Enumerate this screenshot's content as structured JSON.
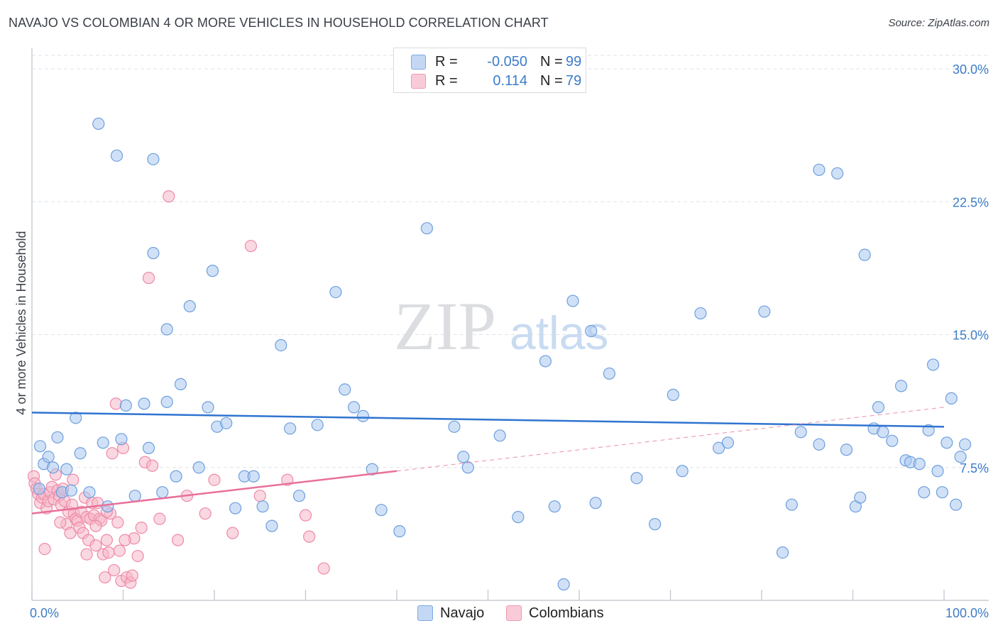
{
  "header": {
    "title": "NAVAJO VS COLOMBIAN 4 OR MORE VEHICLES IN HOUSEHOLD CORRELATION CHART",
    "source": "Source: ZipAtlas.com"
  },
  "watermark": {
    "zip": "ZIP",
    "atlas": "atlas"
  },
  "legend": {
    "navajo": {
      "r_label": "R =",
      "r_value": "-0.050",
      "n_label": "N =",
      "n_value": "99",
      "color": "#a9c8f0"
    },
    "colombians": {
      "r_label": "R =",
      "r_value": "0.114",
      "n_label": "N =",
      "n_value": "79",
      "color": "#f6b8c9"
    }
  },
  "bottom_legend": {
    "navajo": "Navajo",
    "colombians": "Colombians"
  },
  "colors": {
    "navajo_fill": "#a9c8f0",
    "navajo_stroke": "#6e9fdd",
    "navajo_line": "#2f74d0",
    "colombian_fill": "#f6b8c9",
    "colombian_stroke": "#ee8aa8",
    "colombian_line": "#e8709a",
    "grid": "#dfe3e8",
    "tick_text": "#3d7cc9"
  },
  "chart_data": {
    "type": "scatter",
    "title": "NAVAJO VS COLOMBIAN 4 OR MORE VEHICLES IN HOUSEHOLD CORRELATION CHART",
    "xlabel": "",
    "ylabel": "4 or more Vehicles in Household",
    "xlim": [
      0,
      100
    ],
    "ylim": [
      0,
      30
    ],
    "x_tick_labels": [
      "0.0%",
      "100.0%"
    ],
    "y_ticks": [
      7.5,
      15.0,
      22.5,
      30.0
    ],
    "y_tick_labels": [
      "7.5%",
      "15.0%",
      "22.5%",
      "30.0%"
    ],
    "series": [
      {
        "name": "Navajo",
        "r": -0.05,
        "n": 99,
        "trend": {
          "x": [
            0,
            100
          ],
          "y": [
            10.6,
            9.8
          ]
        },
        "points": [
          [
            0.8,
            6.3
          ],
          [
            0.9,
            8.7
          ],
          [
            1.3,
            7.7
          ],
          [
            1.8,
            8.1
          ],
          [
            2.3,
            7.5
          ],
          [
            2.8,
            9.2
          ],
          [
            3.3,
            6.1
          ],
          [
            3.8,
            7.4
          ],
          [
            4.3,
            6.2
          ],
          [
            4.8,
            10.3
          ],
          [
            5.3,
            8.3
          ],
          [
            6.3,
            6.1
          ],
          [
            7.3,
            26.9
          ],
          [
            7.8,
            8.9
          ],
          [
            8.3,
            5.3
          ],
          [
            9.3,
            25.1
          ],
          [
            9.8,
            9.1
          ],
          [
            10.3,
            11.0
          ],
          [
            11.3,
            5.9
          ],
          [
            12.3,
            11.1
          ],
          [
            12.8,
            8.6
          ],
          [
            13.3,
            19.6
          ],
          [
            13.3,
            24.9
          ],
          [
            14.3,
            6.1
          ],
          [
            14.8,
            15.3
          ],
          [
            15.8,
            7.0
          ],
          [
            16.3,
            12.2
          ],
          [
            17.3,
            16.6
          ],
          [
            18.3,
            7.5
          ],
          [
            19.3,
            10.9
          ],
          [
            19.8,
            18.6
          ],
          [
            20.3,
            9.8
          ],
          [
            21.3,
            10.0
          ],
          [
            22.3,
            5.2
          ],
          [
            23.3,
            7.0
          ],
          [
            24.3,
            7.0
          ],
          [
            25.3,
            5.3
          ],
          [
            26.3,
            4.2
          ],
          [
            27.3,
            14.4
          ],
          [
            28.3,
            9.7
          ],
          [
            29.3,
            5.9
          ],
          [
            31.3,
            9.9
          ],
          [
            33.3,
            17.4
          ],
          [
            34.3,
            11.9
          ],
          [
            35.3,
            10.9
          ],
          [
            36.3,
            10.4
          ],
          [
            37.3,
            7.4
          ],
          [
            38.3,
            5.1
          ],
          [
            40.3,
            3.9
          ],
          [
            43.3,
            21.0
          ],
          [
            46.3,
            9.8
          ],
          [
            47.3,
            8.1
          ],
          [
            47.8,
            7.5
          ],
          [
            51.3,
            9.3
          ],
          [
            53.3,
            4.7
          ],
          [
            56.3,
            13.5
          ],
          [
            57.3,
            5.3
          ],
          [
            58.3,
            0.9
          ],
          [
            59.3,
            16.9
          ],
          [
            61.3,
            15.2
          ],
          [
            63.3,
            12.8
          ],
          [
            66.3,
            6.9
          ],
          [
            68.3,
            4.3
          ],
          [
            70.3,
            11.6
          ],
          [
            71.3,
            7.3
          ],
          [
            73.3,
            16.2
          ],
          [
            75.3,
            8.6
          ],
          [
            76.3,
            8.9
          ],
          [
            80.3,
            16.3
          ],
          [
            82.3,
            2.7
          ],
          [
            83.3,
            5.4
          ],
          [
            84.3,
            9.5
          ],
          [
            86.3,
            8.8
          ],
          [
            86.3,
            24.3
          ],
          [
            88.3,
            24.1
          ],
          [
            89.3,
            8.5
          ],
          [
            90.3,
            5.3
          ],
          [
            90.8,
            5.8
          ],
          [
            91.3,
            19.5
          ],
          [
            92.3,
            9.7
          ],
          [
            92.8,
            10.9
          ],
          [
            93.3,
            9.5
          ],
          [
            94.3,
            9.0
          ],
          [
            95.3,
            12.1
          ],
          [
            95.8,
            7.9
          ],
          [
            96.3,
            7.8
          ],
          [
            97.3,
            7.7
          ],
          [
            97.8,
            6.1
          ],
          [
            98.3,
            9.6
          ],
          [
            98.8,
            13.3
          ],
          [
            99.3,
            7.3
          ],
          [
            99.8,
            6.1
          ],
          [
            100.3,
            8.9
          ],
          [
            100.8,
            11.4
          ],
          [
            101.3,
            5.4
          ],
          [
            101.8,
            8.1
          ],
          [
            102.3,
            8.8
          ],
          [
            61.8,
            5.5
          ],
          [
            14.8,
            11.2
          ]
        ]
      },
      {
        "name": "Colombians",
        "r": 0.114,
        "n": 79,
        "trend": {
          "x": [
            0,
            40
          ],
          "y": [
            4.9,
            7.3
          ]
        },
        "trend_extension": {
          "x": [
            40,
            100
          ],
          "y": [
            7.3,
            10.9
          ]
        },
        "points": [
          [
            0.2,
            7.0
          ],
          [
            0.3,
            6.6
          ],
          [
            0.5,
            6.3
          ],
          [
            0.7,
            6.0
          ],
          [
            0.9,
            5.5
          ],
          [
            1.1,
            5.8
          ],
          [
            1.3,
            6.0
          ],
          [
            1.4,
            2.9
          ],
          [
            1.6,
            5.2
          ],
          [
            1.8,
            5.6
          ],
          [
            2.0,
            6.1
          ],
          [
            2.2,
            6.4
          ],
          [
            2.4,
            5.7
          ],
          [
            2.6,
            7.1
          ],
          [
            2.8,
            6.2
          ],
          [
            3.0,
            5.9
          ],
          [
            3.2,
            5.4
          ],
          [
            3.4,
            6.3
          ],
          [
            3.6,
            5.6
          ],
          [
            3.8,
            4.3
          ],
          [
            4.0,
            5.0
          ],
          [
            4.2,
            3.8
          ],
          [
            4.4,
            5.4
          ],
          [
            4.6,
            4.9
          ],
          [
            4.8,
            4.6
          ],
          [
            5.0,
            4.5
          ],
          [
            5.2,
            4.1
          ],
          [
            5.4,
            5.0
          ],
          [
            5.6,
            3.8
          ],
          [
            5.8,
            5.8
          ],
          [
            6.0,
            4.7
          ],
          [
            6.2,
            3.4
          ],
          [
            6.4,
            4.6
          ],
          [
            6.6,
            5.5
          ],
          [
            6.8,
            4.8
          ],
          [
            7.0,
            3.1
          ],
          [
            7.2,
            5.5
          ],
          [
            7.4,
            4.6
          ],
          [
            7.6,
            4.5
          ],
          [
            7.8,
            2.6
          ],
          [
            8.0,
            1.3
          ],
          [
            8.2,
            3.4
          ],
          [
            8.4,
            2.7
          ],
          [
            8.6,
            4.9
          ],
          [
            8.8,
            8.3
          ],
          [
            9.0,
            1.7
          ],
          [
            9.2,
            11.1
          ],
          [
            9.4,
            4.4
          ],
          [
            9.6,
            2.8
          ],
          [
            9.8,
            1.1
          ],
          [
            10.0,
            8.6
          ],
          [
            10.4,
            1.3
          ],
          [
            10.8,
            1.0
          ],
          [
            11.2,
            3.5
          ],
          [
            11.6,
            2.5
          ],
          [
            12.0,
            4.1
          ],
          [
            12.4,
            7.8
          ],
          [
            12.8,
            18.2
          ],
          [
            13.2,
            7.6
          ],
          [
            14.0,
            4.6
          ],
          [
            15.0,
            22.8
          ],
          [
            16.0,
            3.4
          ],
          [
            17.0,
            5.9
          ],
          [
            19.0,
            4.9
          ],
          [
            20.0,
            6.8
          ],
          [
            22.0,
            3.8
          ],
          [
            24.0,
            20.0
          ],
          [
            25.0,
            5.9
          ],
          [
            28.0,
            6.8
          ],
          [
            30.0,
            4.8
          ],
          [
            30.4,
            3.6
          ],
          [
            32.0,
            1.8
          ],
          [
            11.0,
            1.4
          ],
          [
            7.0,
            4.2
          ],
          [
            4.5,
            6.8
          ],
          [
            3.1,
            4.4
          ],
          [
            6.0,
            2.6
          ],
          [
            8.2,
            5.0
          ],
          [
            10.2,
            3.4
          ]
        ]
      }
    ]
  }
}
